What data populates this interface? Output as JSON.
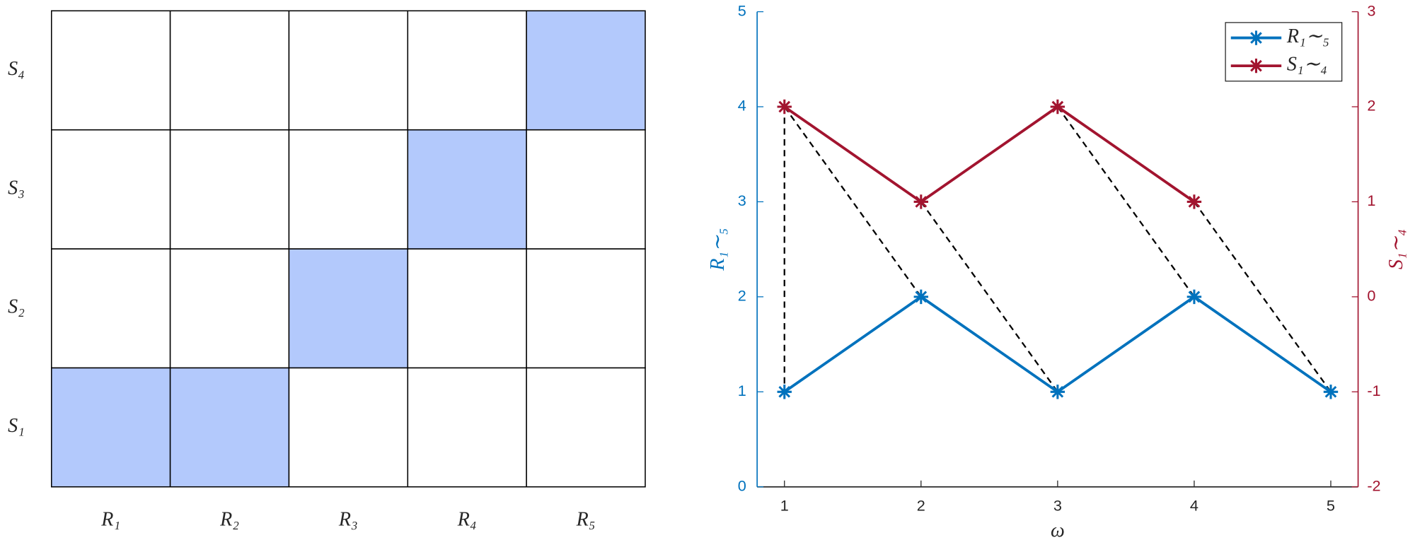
{
  "chart_data": [
    {
      "type": "heatmap",
      "x_categories": [
        "R₁",
        "R₂",
        "R₃",
        "R₄",
        "R₅"
      ],
      "y_categories": [
        "S₁",
        "S₂",
        "S₃",
        "S₄"
      ],
      "values": [
        [
          1,
          1,
          0,
          0,
          0
        ],
        [
          0,
          0,
          1,
          0,
          0
        ],
        [
          0,
          0,
          0,
          1,
          0
        ],
        [
          0,
          0,
          0,
          0,
          1
        ]
      ],
      "color": "#b3c9fc"
    },
    {
      "type": "line",
      "x": [
        1,
        2,
        3,
        4,
        5
      ],
      "xlabel": "ω",
      "ylabel": "R₁∼₅",
      "y2label": "S₁∼₄",
      "xlim": [
        0.8,
        5.2
      ],
      "xticks": [
        1,
        2,
        3,
        4,
        5
      ],
      "ylim": [
        0,
        5
      ],
      "yticks": [
        0,
        1,
        2,
        3,
        4,
        5
      ],
      "y2lim": [
        -2,
        3
      ],
      "y2ticks": [
        -2,
        -1,
        0,
        1,
        2,
        3
      ],
      "series": [
        {
          "name": "R₁∼₅",
          "color": "#0072bd",
          "values": [
            1,
            2,
            1,
            2,
            1
          ]
        },
        {
          "name": "S₁∼₄",
          "color": "#a2142f",
          "axis": "y2",
          "values": [
            2,
            1,
            2,
            1,
            null
          ]
        }
      ],
      "connections": [
        [
          1,
          1
        ],
        [
          1,
          2
        ],
        [
          2,
          3
        ],
        [
          3,
          4
        ],
        [
          4,
          5
        ]
      ],
      "legend": "upper right"
    }
  ]
}
